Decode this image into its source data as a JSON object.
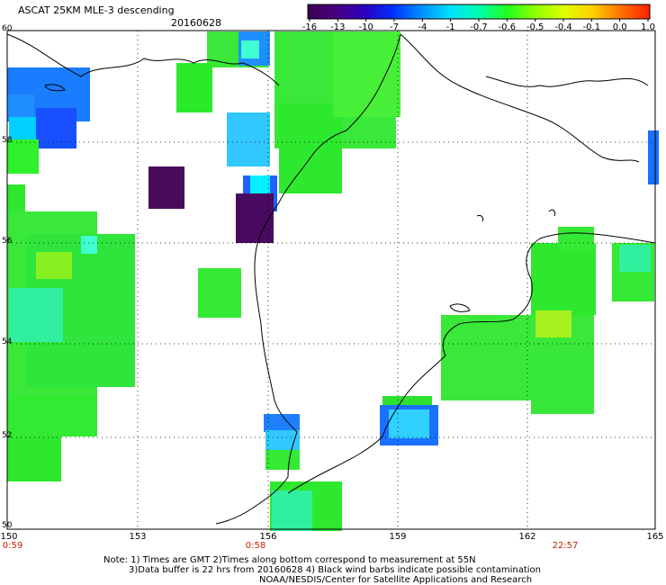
{
  "header": {
    "title": "ASCAT 25KM MLE-3 descending",
    "date": "20160628"
  },
  "colorbar": {
    "labels": [
      "-16",
      "-13",
      "-10",
      "-7",
      "-4",
      "-1",
      "-0.7",
      "-0.6",
      "-0.5",
      "-0.4",
      "-0.1",
      "0.0",
      "1.0"
    ],
    "colors": [
      "#3a0050",
      "#4a0080",
      "#2a00c0",
      "#0030ff",
      "#0090ff",
      "#00e0ff",
      "#00ffb0",
      "#20ff20",
      "#90ff00",
      "#e0ff00",
      "#ffd000",
      "#ff7000",
      "#ff2000"
    ]
  },
  "axes": {
    "x_ticks": [
      "150",
      "153",
      "156",
      "159",
      "162",
      "165"
    ],
    "y_ticks": [
      "60",
      "58",
      "56",
      "54",
      "52",
      "50"
    ],
    "time_labels": [
      "0:59",
      "0:58",
      "22:57"
    ],
    "lon_range": [
      150,
      165
    ],
    "lat_range": [
      50,
      60
    ]
  },
  "notes": {
    "line1": "Note: 1) Times are GMT 2)Times along bottom correspond to measurement at 55N",
    "line2": "3)Data buffer is 22 hrs from 20160628 4) Black wind barbs indicate possible contamination",
    "line3": "NOAA/NESDIS/Center for Satellite Applications and Research"
  }
}
